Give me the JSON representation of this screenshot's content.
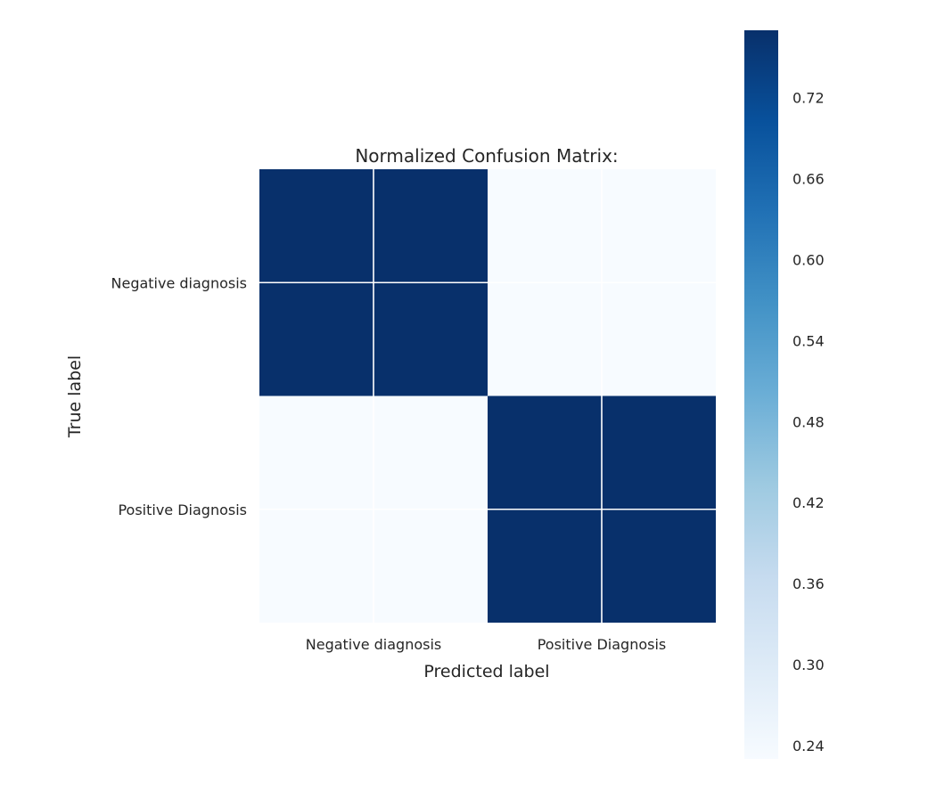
{
  "chart_data": {
    "type": "heatmap",
    "title": "Normalized Confusion Matrix:",
    "xlabel": "Predicted label",
    "ylabel": "True label",
    "x_categories": [
      "Negative diagnosis",
      "Positive Diagnosis"
    ],
    "y_categories": [
      "Negative diagnosis",
      "Positive Diagnosis"
    ],
    "values": [
      [
        0.77,
        0.23
      ],
      [
        0.23,
        0.77
      ]
    ],
    "colormap": "Blues",
    "grid": true,
    "colorbar": {
      "range": [
        0.23,
        0.77
      ],
      "ticks": [
        "0.24",
        "0.30",
        "0.36",
        "0.42",
        "0.48",
        "0.54",
        "0.60",
        "0.66",
        "0.72"
      ],
      "location": "right"
    }
  }
}
